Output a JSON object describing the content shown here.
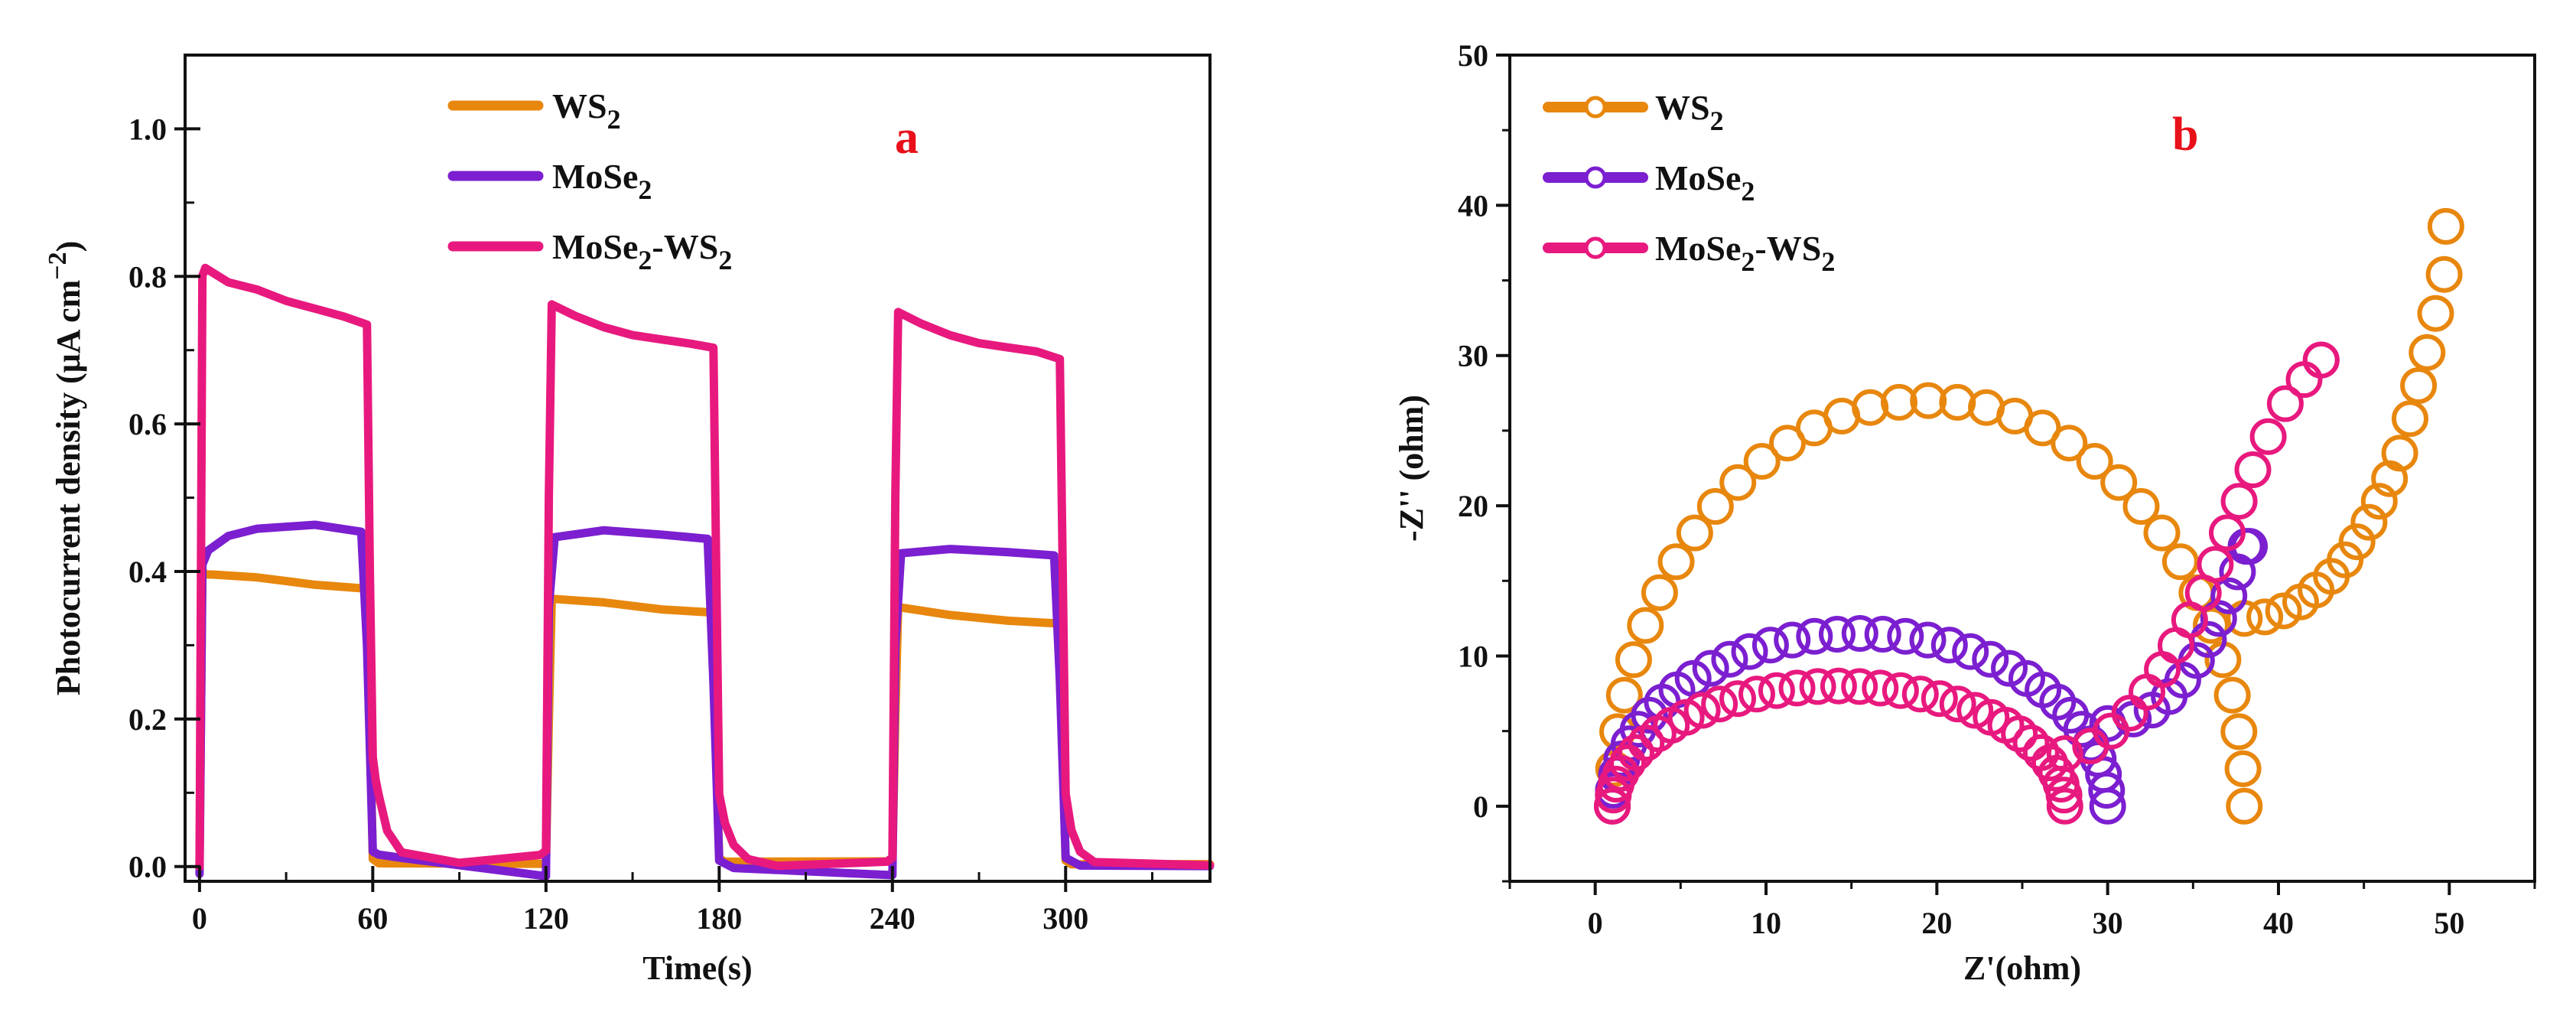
{
  "colors": {
    "ws2": "#E8870E",
    "mose2": "#7B1FD0",
    "mose2_ws2": "#E8197E",
    "panel_letter": "#E8101A",
    "axis": "#111111"
  },
  "chart_data": [
    {
      "type": "line",
      "panel": "a",
      "title": "",
      "xlabel": "Time(s)",
      "ylabel_main": "Photocurrent density (μA cm",
      "ylabel_sup": "−2",
      "ylabel_close": ")",
      "xlim": [
        -5,
        350
      ],
      "ylim": [
        -0.02,
        1.1
      ],
      "xticks": [
        0,
        60,
        120,
        180,
        240,
        300
      ],
      "xtick_labels": [
        "0",
        "60",
        "120",
        "180",
        "240",
        "300"
      ],
      "yticks": [
        0.0,
        0.2,
        0.4,
        0.6,
        0.8,
        1.0
      ],
      "ytick_labels": [
        "0.0",
        "0.2",
        "0.4",
        "0.6",
        "0.8",
        "1.0"
      ],
      "legend_position": "top-center",
      "series": [
        {
          "key": "ws2",
          "name_main": "WS",
          "name_sub": "2",
          "name_tail": "",
          "x": [
            0,
            1,
            2,
            20,
            40,
            58,
            59,
            60,
            62,
            120,
            121,
            122,
            140,
            160,
            178,
            179,
            180,
            182,
            240,
            241,
            242,
            260,
            280,
            298,
            299,
            300,
            302,
            350
          ],
          "values": [
            0.0,
            0.4,
            0.395,
            0.39,
            0.38,
            0.375,
            0.2,
            0.01,
            0.005,
            0.005,
            0.2,
            0.365,
            0.36,
            0.35,
            0.345,
            0.15,
            0.01,
            0.005,
            0.005,
            0.2,
            0.35,
            0.34,
            0.333,
            0.33,
            0.15,
            0.01,
            0.005,
            0.005
          ]
        },
        {
          "key": "mose2",
          "name_main": "MoSe",
          "name_sub": "2",
          "name_tail": "",
          "x": [
            0,
            1,
            3,
            10,
            20,
            40,
            56,
            58,
            60,
            62,
            70,
            120,
            121,
            123,
            140,
            160,
            176,
            178,
            180,
            185,
            240,
            241,
            243,
            260,
            280,
            296,
            298,
            300,
            305,
            350
          ],
          "values": [
            -0.01,
            0.41,
            0.43,
            0.45,
            0.46,
            0.465,
            0.455,
            0.3,
            0.02,
            0.015,
            0.01,
            -0.015,
            0.35,
            0.445,
            0.455,
            0.45,
            0.445,
            0.25,
            0.01,
            0.0,
            -0.01,
            0.3,
            0.425,
            0.43,
            0.425,
            0.42,
            0.25,
            0.01,
            0.0,
            0.0
          ]
        },
        {
          "key": "mose2_ws2",
          "name_main": "MoSe",
          "name_sub": "2",
          "name_tail": "-WS",
          "name_sub2": "2",
          "x": [
            0,
            1,
            2,
            10,
            20,
            30,
            40,
            50,
            58,
            59,
            60,
            61,
            62,
            65,
            70,
            90,
            118,
            120,
            121,
            122,
            130,
            140,
            150,
            160,
            170,
            178,
            179,
            180,
            182,
            185,
            190,
            200,
            238,
            240,
            241,
            242,
            250,
            260,
            270,
            280,
            290,
            298,
            299,
            300,
            302,
            305,
            310,
            350
          ],
          "values": [
            0.0,
            0.8,
            0.81,
            0.79,
            0.78,
            0.765,
            0.755,
            0.745,
            0.735,
            0.4,
            0.15,
            0.12,
            0.1,
            0.05,
            0.02,
            0.005,
            0.015,
            0.02,
            0.5,
            0.76,
            0.745,
            0.73,
            0.72,
            0.715,
            0.71,
            0.705,
            0.4,
            0.1,
            0.06,
            0.03,
            0.01,
            0.0,
            0.005,
            0.01,
            0.5,
            0.75,
            0.735,
            0.72,
            0.71,
            0.705,
            0.7,
            0.69,
            0.4,
            0.1,
            0.05,
            0.02,
            0.005,
            0.0
          ]
        }
      ],
      "panel_letter": "a"
    },
    {
      "type": "scatter",
      "panel": "b",
      "title": "",
      "xlabel": "Z'(ohm)",
      "ylabel": "-Z'' (ohm)",
      "xlim": [
        -5,
        55
      ],
      "ylim": [
        -5,
        50
      ],
      "xticks": [
        0,
        10,
        20,
        30,
        40,
        50
      ],
      "xtick_labels": [
        "0",
        "10",
        "20",
        "30",
        "40",
        "50"
      ],
      "yticks": [
        0,
        10,
        20,
        30,
        40,
        50
      ],
      "ytick_labels": [
        "0",
        "10",
        "20",
        "30",
        "40",
        "50"
      ],
      "legend_position": "top-left",
      "series": [
        {
          "key": "ws2",
          "name_main": "WS",
          "name_sub": "2",
          "name_tail": "",
          "arc": {
            "x0": 1,
            "x1": 38,
            "peak_y": 27.0
          },
          "tail": {
            "x": [
              38,
              39.2,
              40.3,
              41.3,
              42.2,
              43.1,
              43.9,
              44.6,
              45.3,
              45.9,
              46.5,
              47.1,
              47.7,
              48.2,
              48.7,
              49.2,
              49.7
            ],
            "y": [
              12.5,
              12.6,
              13.0,
              13.6,
              14.4,
              15.3,
              16.4,
              17.6,
              18.9,
              20.3,
              21.8,
              23.5,
              25.8,
              28.0,
              30.2,
              32.8,
              35.4
            ]
          },
          "end_point": [
            49.8,
            38.6
          ]
        },
        {
          "key": "mose2",
          "name_main": "MoSe",
          "name_sub": "2",
          "name_tail": "",
          "arc": {
            "x0": 1,
            "x1": 30,
            "peak_y": 11.5
          },
          "tail": {
            "x": [
              30,
              31.5,
              32.6,
              33.6,
              34.4,
              35.2,
              35.9,
              36.5,
              37.1,
              37.6,
              38.1
            ],
            "y": [
              5.5,
              5.8,
              6.4,
              7.3,
              8.4,
              9.7,
              11.1,
              12.5,
              14.0,
              15.6,
              17.3
            ]
          },
          "end_point": [
            38.3,
            17.3
          ]
        },
        {
          "key": "mose2_ws2",
          "name_main": "MoSe",
          "name_sub": "2",
          "name_tail": "-WS",
          "name_sub2": "2",
          "arc": {
            "x0": 1,
            "x1": 27.5,
            "peak_y": 8.0
          },
          "tail": {
            "x": [
              27.5,
              29.0,
              30.2,
              31.3,
              32.3,
              33.2,
              34.0,
              34.8,
              35.6,
              36.3,
              37.0,
              37.7,
              38.5,
              39.4,
              40.4,
              41.5,
              42.5
            ],
            "y": [
              3.5,
              4.0,
              5.0,
              6.2,
              7.6,
              9.1,
              10.7,
              12.4,
              14.2,
              16.1,
              18.2,
              20.3,
              22.4,
              24.6,
              26.8,
              28.4,
              29.7
            ]
          },
          "end_point": [
            42.5,
            29.7
          ]
        }
      ],
      "panel_letter": "b"
    }
  ]
}
